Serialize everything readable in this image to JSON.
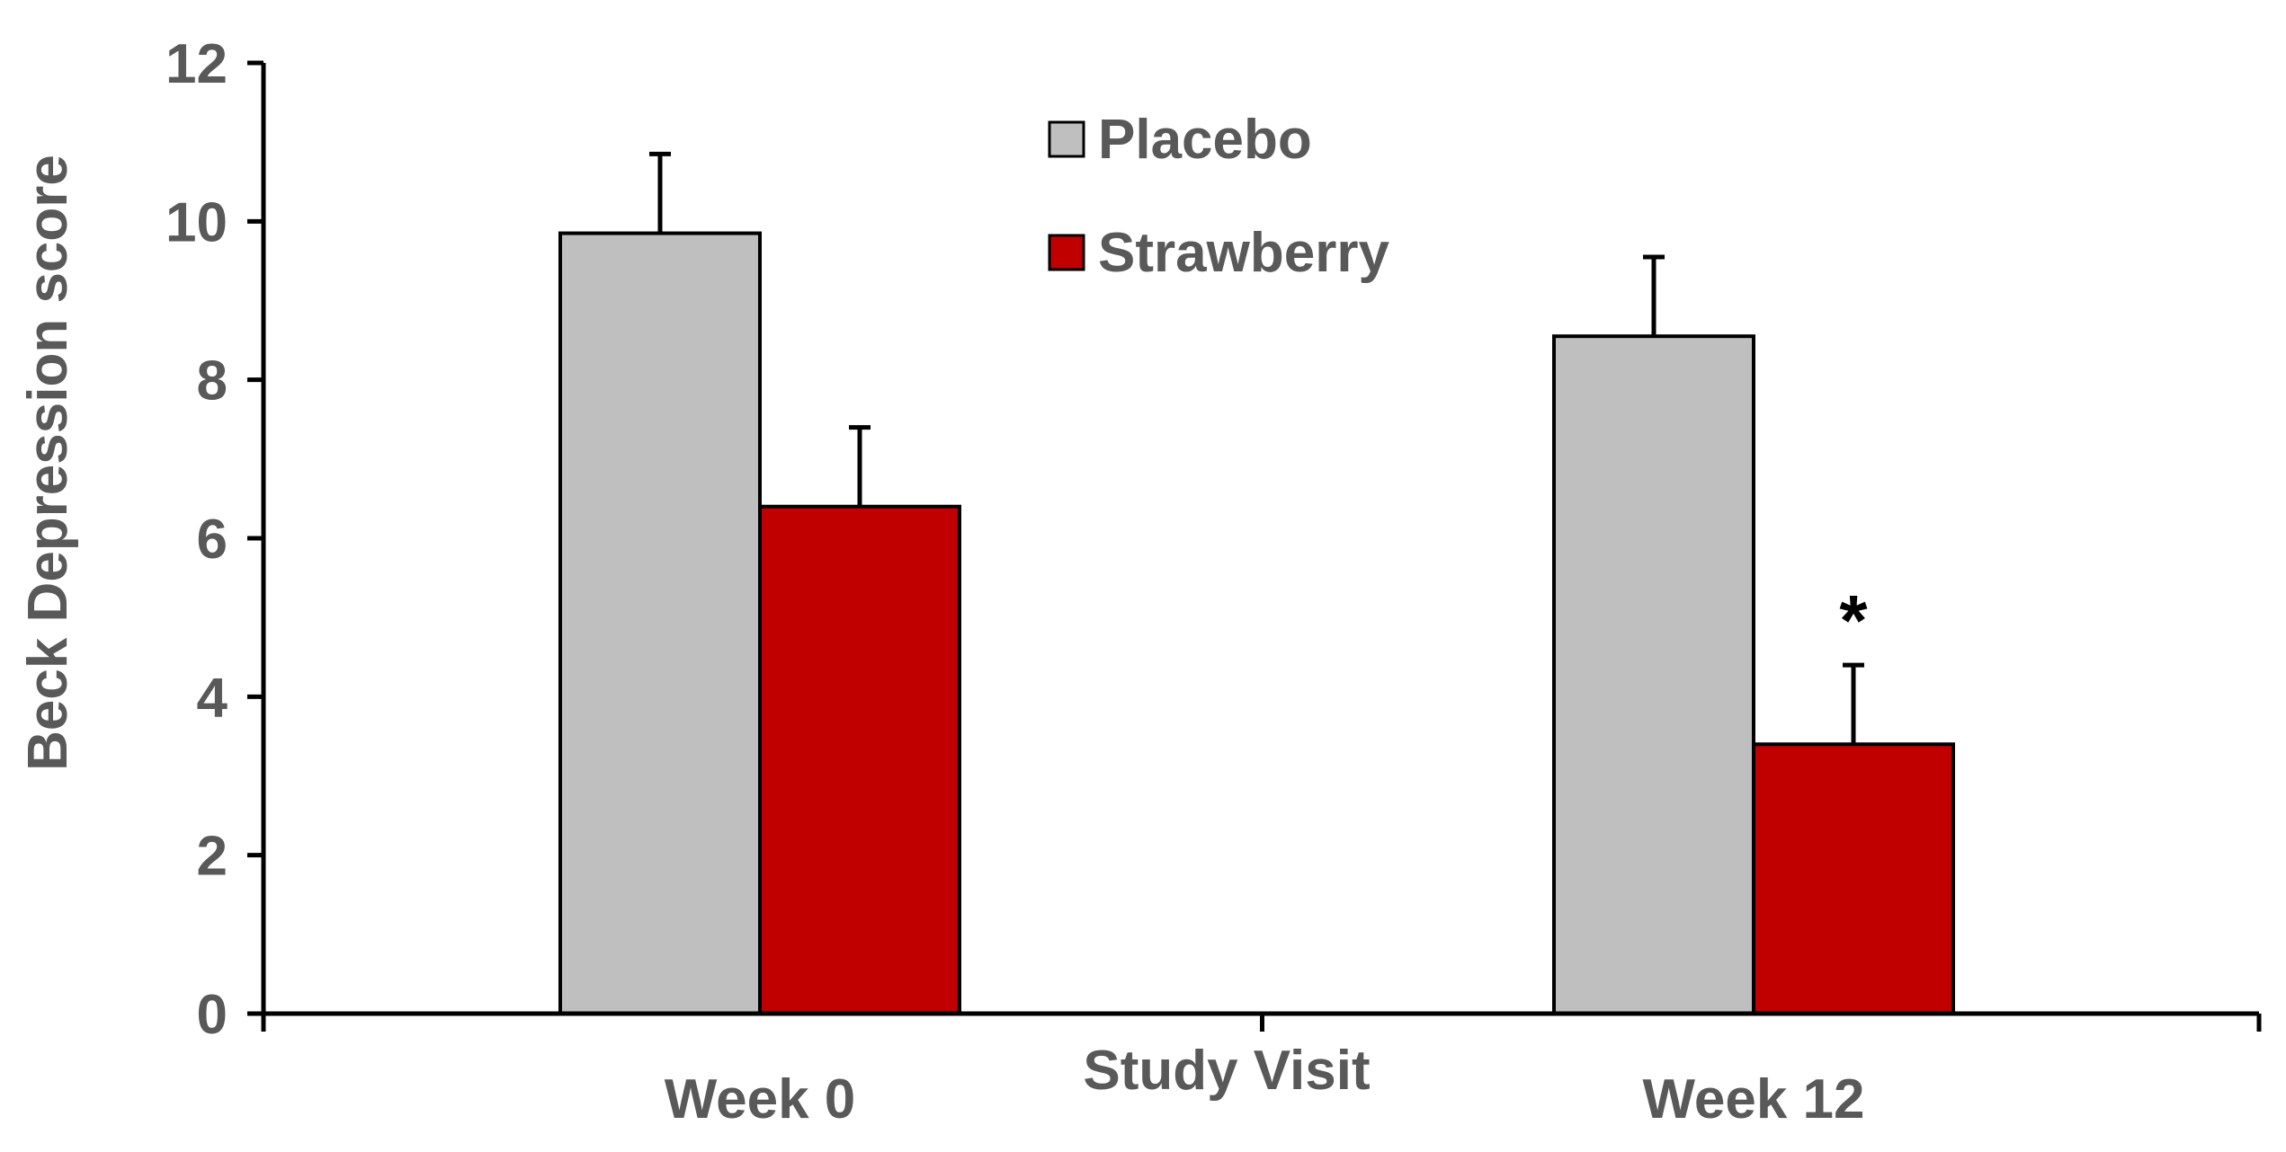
{
  "chart_data": {
    "type": "bar",
    "title": "",
    "xlabel": "Study Visit",
    "ylabel": "Beck Depression score",
    "ylim": [
      0,
      12
    ],
    "yticks": [
      "0",
      "2",
      "4",
      "6",
      "8",
      "10",
      "12"
    ],
    "categories": [
      "Week 0",
      "Week 12"
    ],
    "series": [
      {
        "name": "Placebo",
        "color": "#bfbfbf",
        "values": [
          9.85,
          8.55
        ],
        "error": [
          1.0,
          1.0
        ]
      },
      {
        "name": "Strawberry",
        "color": "#c00000",
        "values": [
          6.4,
          3.4
        ],
        "error": [
          1.0,
          1.0
        ]
      }
    ],
    "legend_position": "top-center",
    "grid": false,
    "annotations": [
      {
        "text": "*",
        "category": "Week 12",
        "series": "Strawberry"
      }
    ]
  }
}
